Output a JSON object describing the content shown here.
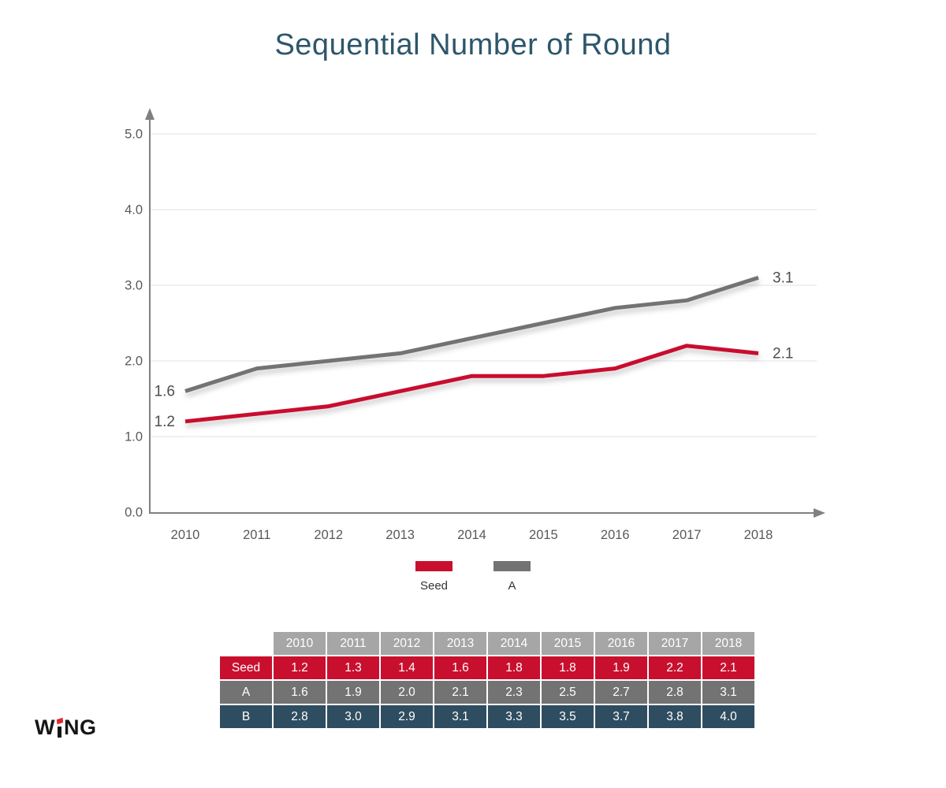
{
  "title": "Sequential Number of Round",
  "colors": {
    "title": "#2d566b",
    "axis": "#808080",
    "grid": "#e8e8e8",
    "tick_label": "#595959",
    "value_label": "#4d4d4d",
    "seed_red": "#c8102e",
    "series_gray": "#737373",
    "table_header_gray": "#a6a6a6",
    "table_b_blue": "#2f4d60",
    "logo_black": "#161616",
    "logo_dot_red": "#e5252c",
    "background": "#ffffff"
  },
  "chart_data": {
    "type": "line",
    "title": "Sequential Number of Round",
    "x": [
      "2010",
      "2011",
      "2012",
      "2013",
      "2014",
      "2015",
      "2016",
      "2017",
      "2018"
    ],
    "series": [
      {
        "name": "Seed",
        "color": "#c8102e",
        "values": [
          1.2,
          1.3,
          1.4,
          1.6,
          1.8,
          1.8,
          1.9,
          2.2,
          2.1
        ],
        "start_label": "1.2",
        "end_label": "2.1"
      },
      {
        "name": "A",
        "color": "#737373",
        "values": [
          1.6,
          1.9,
          2.0,
          2.1,
          2.3,
          2.5,
          2.7,
          2.8,
          3.1
        ],
        "start_label": "1.6",
        "end_label": "3.1"
      }
    ],
    "xlabel": "",
    "ylabel": "",
    "ylim": [
      0,
      5
    ],
    "yticks": [
      "0.0",
      "1.0",
      "2.0",
      "3.0",
      "4.0",
      "5.0"
    ],
    "grid": true,
    "legend_position": "bottom"
  },
  "legend": {
    "items": [
      {
        "label": "Seed",
        "color": "#c8102e"
      },
      {
        "label": "A",
        "color": "#737373"
      }
    ]
  },
  "table": {
    "header": [
      "",
      "2010",
      "2011",
      "2012",
      "2013",
      "2014",
      "2015",
      "2016",
      "2017",
      "2018"
    ],
    "header_color": "#a6a6a6",
    "rows": [
      {
        "label": "Seed",
        "color": "#c8102e",
        "values": [
          "1.2",
          "1.3",
          "1.4",
          "1.6",
          "1.8",
          "1.8",
          "1.9",
          "2.2",
          "2.1"
        ]
      },
      {
        "label": "A",
        "color": "#737373",
        "values": [
          "1.6",
          "1.9",
          "2.0",
          "2.1",
          "2.3",
          "2.5",
          "2.7",
          "2.8",
          "3.1"
        ]
      },
      {
        "label": "B",
        "color": "#2f4d60",
        "values": [
          "2.8",
          "3.0",
          "2.9",
          "3.1",
          "3.3",
          "3.5",
          "3.7",
          "3.8",
          "4.0"
        ]
      }
    ]
  },
  "logo": {
    "name": "WiNG",
    "prefix": "W",
    "suffix": "NG"
  }
}
